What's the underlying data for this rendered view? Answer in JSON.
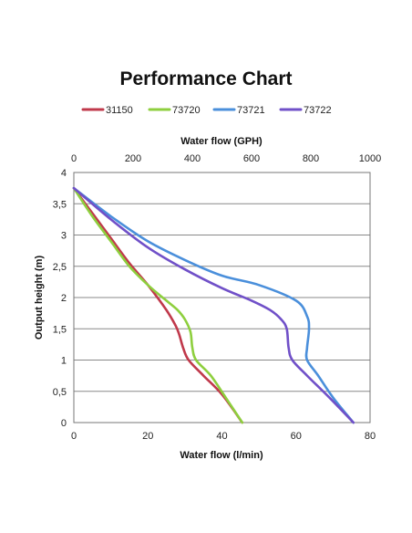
{
  "chart_data": {
    "type": "line",
    "title": "Performance Chart",
    "xlabel": "Water flow (l/min)",
    "x2label": "Water flow (GPH)",
    "ylabel": "Output height (m)",
    "xlim": [
      0,
      80
    ],
    "x2lim": [
      0,
      1000
    ],
    "ylim": [
      0,
      4
    ],
    "x_ticks": [
      "0",
      "20",
      "40",
      "60",
      "80"
    ],
    "x2_ticks": [
      "0",
      "200",
      "400",
      "600",
      "800",
      "1000"
    ],
    "y_ticks": [
      "0",
      "0,5",
      "1",
      "1,5",
      "2",
      "2,5",
      "3",
      "3,5",
      "4"
    ],
    "grid": true,
    "legend_position": "top",
    "series": [
      {
        "name": "31150",
        "color": "#c0394b",
        "points": [
          [
            0,
            3.75
          ],
          [
            5,
            3.35
          ],
          [
            10,
            2.95
          ],
          [
            15,
            2.55
          ],
          [
            20,
            2.2
          ],
          [
            25,
            1.8
          ],
          [
            27.5,
            1.55
          ],
          [
            28.5,
            1.4
          ],
          [
            29.5,
            1.2
          ],
          [
            31,
            1.0
          ],
          [
            35,
            0.75
          ],
          [
            40,
            0.45
          ],
          [
            45.5,
            0.0
          ]
        ]
      },
      {
        "name": "73720",
        "color": "#8ecf3e",
        "points": [
          [
            0,
            3.75
          ],
          [
            5,
            3.3
          ],
          [
            10,
            2.9
          ],
          [
            15,
            2.5
          ],
          [
            20,
            2.2
          ],
          [
            25,
            1.95
          ],
          [
            28,
            1.8
          ],
          [
            30,
            1.65
          ],
          [
            31.5,
            1.45
          ],
          [
            32,
            1.2
          ],
          [
            33,
            1.0
          ],
          [
            37,
            0.75
          ],
          [
            41,
            0.4
          ],
          [
            45.5,
            0.0
          ]
        ]
      },
      {
        "name": "73721",
        "color": "#4a8fdb",
        "points": [
          [
            0,
            3.75
          ],
          [
            10,
            3.3
          ],
          [
            20,
            2.9
          ],
          [
            30,
            2.6
          ],
          [
            40,
            2.35
          ],
          [
            50,
            2.2
          ],
          [
            60,
            1.95
          ],
          [
            63,
            1.7
          ],
          [
            63.5,
            1.5
          ],
          [
            63,
            1.2
          ],
          [
            63,
            1.0
          ],
          [
            66,
            0.75
          ],
          [
            70,
            0.4
          ],
          [
            75.5,
            0.0
          ]
        ]
      },
      {
        "name": "73722",
        "color": "#7050c8",
        "points": [
          [
            0,
            3.75
          ],
          [
            10,
            3.25
          ],
          [
            20,
            2.8
          ],
          [
            30,
            2.45
          ],
          [
            40,
            2.15
          ],
          [
            48,
            1.95
          ],
          [
            53,
            1.8
          ],
          [
            56,
            1.65
          ],
          [
            57.5,
            1.5
          ],
          [
            58,
            1.2
          ],
          [
            59,
            1.0
          ],
          [
            63,
            0.75
          ],
          [
            69,
            0.4
          ],
          [
            75.5,
            0.0
          ]
        ]
      }
    ]
  }
}
